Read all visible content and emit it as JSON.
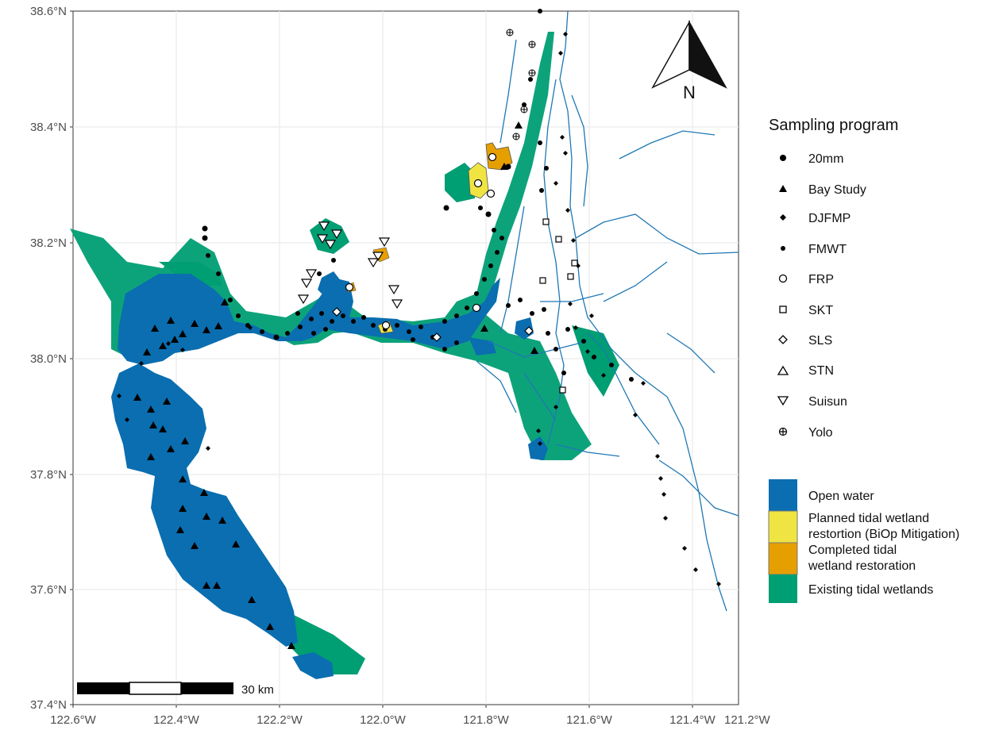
{
  "map": {
    "lat_labels": [
      "38.6°N",
      "38.4°N",
      "38.2°N",
      "38.0°N",
      "37.8°N",
      "37.6°N",
      "37.4°N"
    ],
    "lon_labels": [
      "122.6°W",
      "122.4°W",
      "122.2°W",
      "122.0°W",
      "121.8°W",
      "121.6°W",
      "121.4°W",
      "121.2°W"
    ],
    "north_label": "N",
    "scale_label": "30 km",
    "colors": {
      "open_water": "#0a6eb0",
      "planned_restoration": "#f0e442",
      "completed_restoration": "#e69f00",
      "existing_wetlands": "#009e73",
      "channels": "#1f78b4",
      "grid": "#ebebeb"
    }
  },
  "legend_sampling": {
    "title": "Sampling program",
    "items": [
      {
        "label": "20mm",
        "symbol": "filled-circle-large"
      },
      {
        "label": "Bay Study",
        "symbol": "filled-triangle"
      },
      {
        "label": "DJFMP",
        "symbol": "filled-diamond"
      },
      {
        "label": "FMWT",
        "symbol": "filled-circle-small"
      },
      {
        "label": "FRP",
        "symbol": "open-circle"
      },
      {
        "label": "SKT",
        "symbol": "open-square"
      },
      {
        "label": "SLS",
        "symbol": "open-diamond"
      },
      {
        "label": "STN",
        "symbol": "open-triangle"
      },
      {
        "label": "Suisun",
        "symbol": "open-inverted-triangle"
      },
      {
        "label": "Yolo",
        "symbol": "circle-plus"
      }
    ]
  },
  "legend_habitat": {
    "items": [
      {
        "line1": "Open water",
        "line2": "",
        "color": "#0a6eb0"
      },
      {
        "line1": "Planned tidal wetland",
        "line2": "restortion (BiOp Mitigation)",
        "color": "#f0e442"
      },
      {
        "line1": "Completed tidal",
        "line2": "wetland restoration",
        "color": "#e69f00"
      },
      {
        "line1": "Existing tidal wetlands",
        "line2": "",
        "color": "#009e73"
      }
    ]
  }
}
